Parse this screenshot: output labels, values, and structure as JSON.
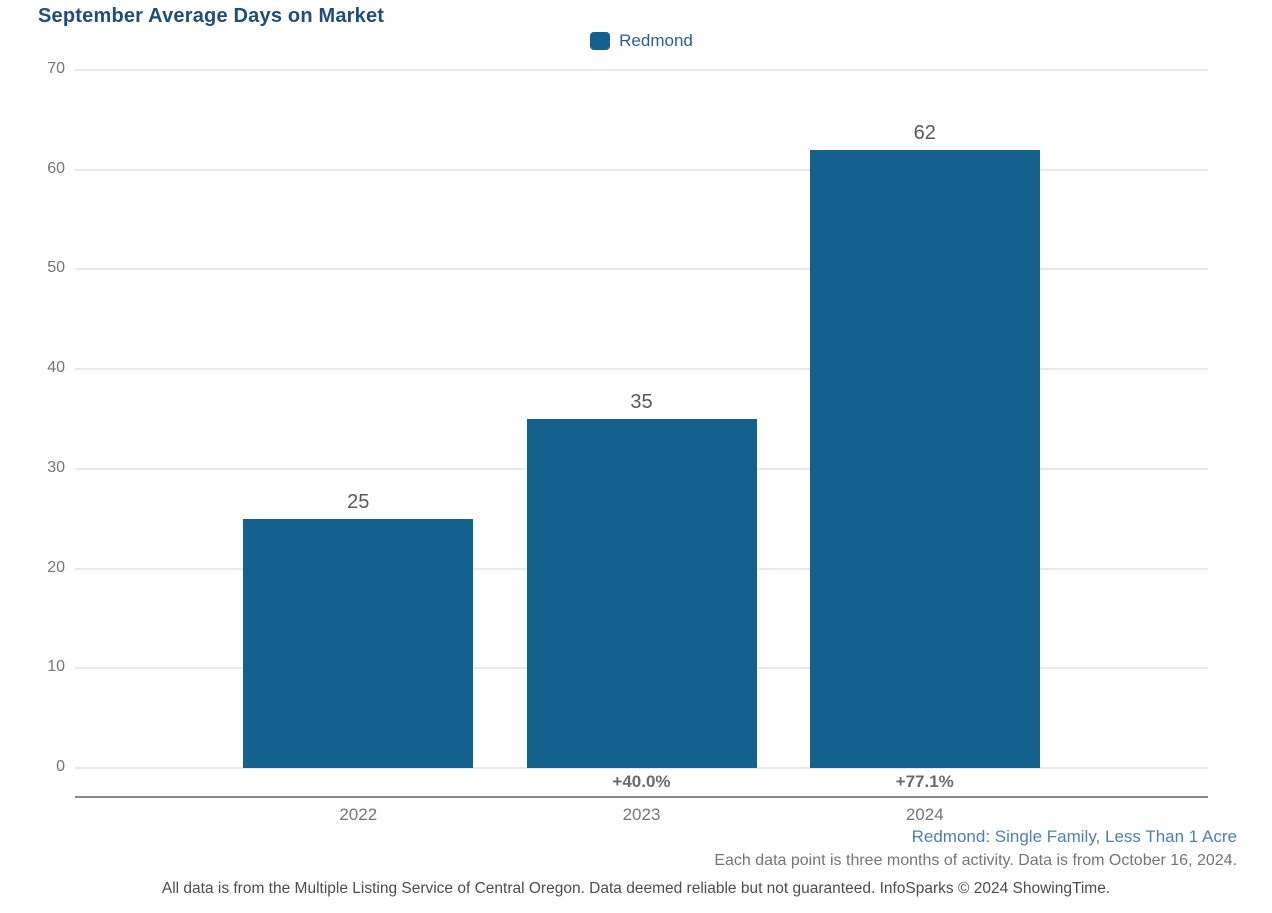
{
  "title": "September Average Days on Market",
  "legend": {
    "label": "Redmond"
  },
  "chart_data": {
    "type": "bar",
    "title": "September Average Days on Market",
    "categories": [
      "2022",
      "2023",
      "2024"
    ],
    "values": [
      25,
      35,
      62
    ],
    "bar_labels": [
      "25",
      "35",
      "62"
    ],
    "pct_change": [
      "",
      "+40.0%",
      "+77.1%"
    ],
    "series": [
      {
        "name": "Redmond",
        "values": [
          25,
          35,
          62
        ]
      }
    ],
    "xlabel": "",
    "ylabel": "",
    "ylim": [
      0,
      70
    ],
    "yticks": [
      0,
      10,
      20,
      30,
      40,
      50,
      60,
      70
    ],
    "grid": true,
    "legend_entries": [
      "Redmond"
    ],
    "legend_position": "top-center"
  },
  "notes": {
    "segment": "Redmond: Single Family, Less Than 1 Acre",
    "data_note": "Each data point is three months of activity. Data is from October 16, 2024.",
    "footer": "All data is from the Multiple Listing Service of Central Oregon. Data deemed reliable but not guaranteed. InfoSparks © 2024 ShowingTime."
  },
  "colors": {
    "title": "#1F4E79",
    "bar": "#15618E",
    "legend_text": "#2E5F8A",
    "segment_note": "#4E7FB5",
    "axis_text": "#757575",
    "value_label": "#595959",
    "pct_label": "#6B6B6B",
    "gridline": "#E9E9E9",
    "axis_line": "#8A8A8A",
    "footer_text": "#4D4D4D"
  }
}
